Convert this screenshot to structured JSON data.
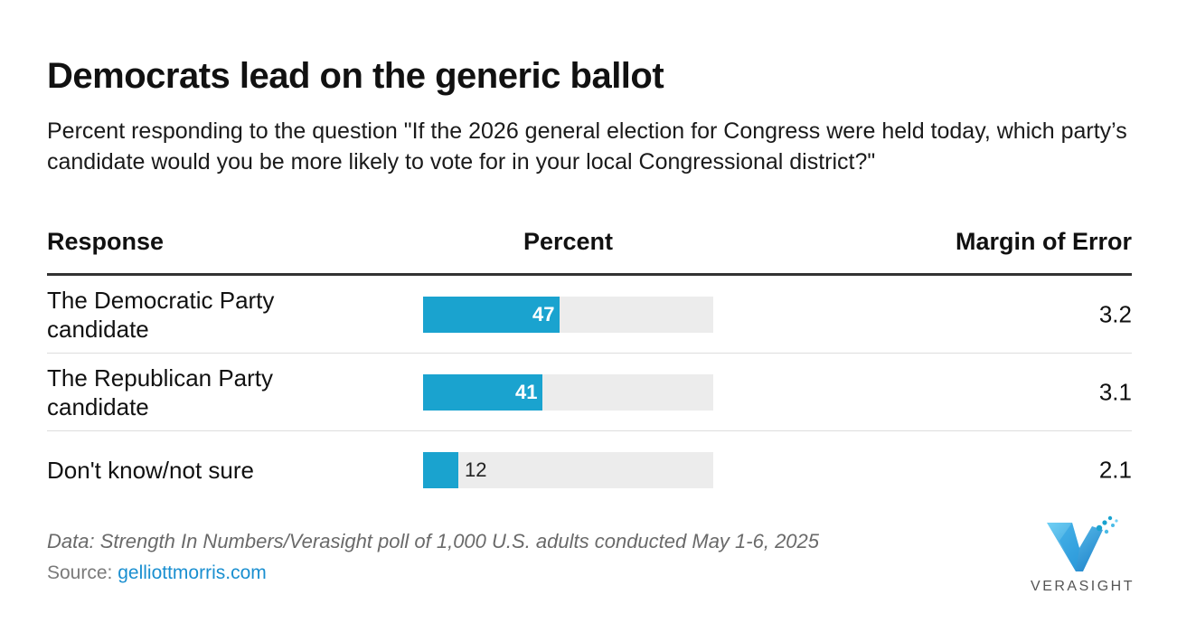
{
  "chart_data": {
    "type": "table",
    "title": "Democrats lead on the generic ballot",
    "subtitle": "Percent responding to the question \"If the 2026 general election for Congress were held today, which party’s candidate would you be more likely to vote for in your local Congressional district?\"",
    "columns": [
      "Response",
      "Percent",
      "Margin of Error"
    ],
    "rows": [
      {
        "response": "The Democratic Party candidate",
        "percent": 47,
        "percent_label": "47",
        "moe": "3.2"
      },
      {
        "response": "The Republican Party candidate",
        "percent": 41,
        "percent_label": "41",
        "moe": "3.1"
      },
      {
        "response": "Don't know/not sure",
        "percent": 12,
        "percent_label": "12",
        "moe": "2.1"
      }
    ],
    "bar_max": 100,
    "bar_color": "#1aa3cf",
    "track_color": "#ececec"
  },
  "footer": {
    "note": "Data: Strength In Numbers/Verasight poll of 1,000 U.S. adults conducted May 1-6, 2025",
    "source_prefix": "Source: ",
    "source_link": "gelliottmorris.com"
  },
  "logo": {
    "text": "VERASIGHT",
    "icon": "verasight-v-logo-icon"
  }
}
